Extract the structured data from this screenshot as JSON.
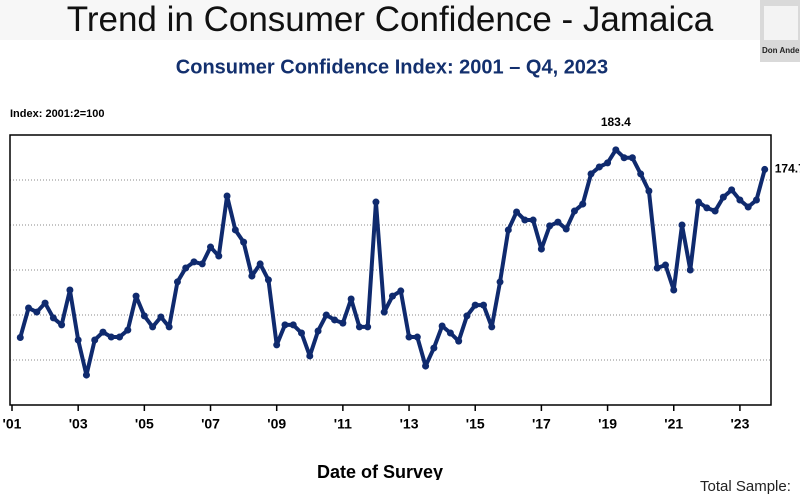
{
  "slide_title": "Trend in Consumer Confidence - Jamaica",
  "participant": "Don Ande",
  "footer_text": "Total Sample:",
  "chart_data": {
    "type": "line",
    "title": "Consumer Confidence Index: 2001 – Q4, 2023",
    "y_label": "Index: 2001:2=100",
    "x_label": "Date of Survey",
    "color": "#0f2a6e",
    "xlim": [
      2001,
      2024
    ],
    "xticks": [
      {
        "value": 2001,
        "label": "'01"
      },
      {
        "value": 2003,
        "label": "'03"
      },
      {
        "value": 2005,
        "label": "'05"
      },
      {
        "value": 2007,
        "label": "'07"
      },
      {
        "value": 2009,
        "label": "'09"
      },
      {
        "value": 2011,
        "label": "'11"
      },
      {
        "value": 2013,
        "label": "'13"
      },
      {
        "value": 2015,
        "label": "'15"
      },
      {
        "value": 2017,
        "label": "'17"
      },
      {
        "value": 2019,
        "label": "'19"
      },
      {
        "value": 2021,
        "label": "'21"
      },
      {
        "value": 2023,
        "label": "'23"
      }
    ],
    "ylim": [
      70,
      190
    ],
    "ygrid": [
      90,
      110,
      130,
      150,
      170
    ],
    "grid": true,
    "x": [
      2001.25,
      2001.5,
      2001.75,
      2002,
      2002.25,
      2002.5,
      2002.75,
      2003,
      2003.25,
      2003.5,
      2003.75,
      2004,
      2004.25,
      2004.5,
      2004.75,
      2005,
      2005.25,
      2005.5,
      2005.75,
      2006,
      2006.25,
      2006.5,
      2006.75,
      2007,
      2007.25,
      2007.5,
      2007.75,
      2008,
      2008.25,
      2008.5,
      2008.75,
      2009,
      2009.25,
      2009.5,
      2009.75,
      2010,
      2010.25,
      2010.5,
      2010.75,
      2011,
      2011.25,
      2011.5,
      2011.75,
      2012,
      2012.25,
      2012.5,
      2012.75,
      2013,
      2013.25,
      2013.5,
      2013.75,
      2014,
      2014.25,
      2014.5,
      2014.75,
      2015,
      2015.25,
      2015.5,
      2015.75,
      2016,
      2016.25,
      2016.5,
      2016.75,
      2017,
      2017.25,
      2017.5,
      2017.75,
      2018,
      2018.25,
      2018.5,
      2018.75,
      2019,
      2019.25,
      2019.5,
      2019.75,
      2020,
      2020.25,
      2020.5,
      2020.75,
      2021,
      2021.25,
      2021.5,
      2021.75,
      2022,
      2022.25,
      2022.5,
      2022.75,
      2023,
      2023.25,
      2023.5,
      2023.75
    ],
    "values": [
      100,
      113.1,
      111.3,
      115.3,
      108.7,
      105.6,
      121.1,
      98.9,
      83.3,
      98.9,
      102.4,
      100.2,
      100.2,
      103.3,
      118.4,
      109.6,
      104.7,
      109.1,
      104.7,
      124.7,
      130.9,
      133.6,
      132.7,
      140.2,
      136.2,
      162.9,
      147.8,
      142.4,
      127.3,
      132.7,
      125.6,
      96.7,
      105.6,
      105.6,
      102.0,
      91.8,
      102.9,
      110.0,
      107.8,
      106.4,
      117.1,
      104.7,
      104.7,
      160.2,
      111.3,
      118.4,
      120.7,
      100.2,
      100.2,
      87.3,
      95.3,
      105.1,
      102.0,
      98.4,
      109.6,
      114.4,
      114.4,
      104.7,
      124.7,
      147.8,
      155.8,
      152.2,
      152.2,
      139.3,
      149.6,
      151.3,
      148.2,
      156.2,
      159.3,
      172.7,
      175.8,
      177.6,
      183.4,
      179.9,
      179.9,
      172.7,
      165.1,
      130.9,
      132.2,
      121.1,
      150.0,
      130.0,
      160.2,
      157.6,
      156.2,
      162.4,
      165.6,
      161.1,
      158.0,
      161.1,
      174.7
    ]
  }
}
